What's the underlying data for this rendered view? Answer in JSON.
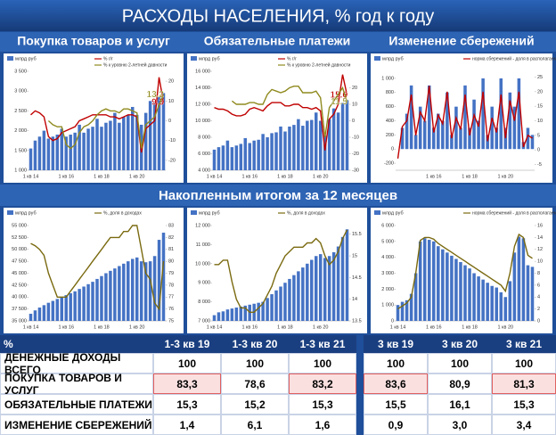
{
  "title": "РАСХОДЫ НАСЕЛЕНИЯ, % год к году",
  "section_title": "Накопленным итогом за 12 месяцев",
  "chart_data": [
    {
      "type": "combo",
      "title": "Покупка товаров и услуг",
      "end_labels": true,
      "categories": [
        "1 кв 14",
        null,
        null,
        null,
        null,
        null,
        null,
        null,
        "1 кв 16",
        null,
        null,
        null,
        null,
        null,
        null,
        null,
        "1 кв 18",
        null,
        null,
        null,
        null,
        null,
        null,
        null,
        "1 кв 20",
        null,
        null,
        null,
        null,
        null,
        null
      ],
      "ylim": [
        1000,
        3500
      ],
      "yticks": [
        {
          "value": 1000,
          "label": "1 000"
        },
        {
          "value": 1500,
          "label": "1 500"
        },
        {
          "value": 2000,
          "label": "2 000"
        },
        {
          "value": 2500,
          "label": "2 500"
        },
        {
          "value": 3000,
          "label": "3 000"
        },
        {
          "value": 3500,
          "label": "3 500"
        }
      ],
      "y2lim": [
        -25,
        25
      ],
      "y2ticks": [
        -20,
        -10,
        0,
        10,
        20
      ],
      "series": [
        {
          "name": "млрд руб",
          "kind": "bar",
          "color": "#4472c4",
          "values": [
            1550,
            1750,
            1850,
            2000,
            1800,
            1850,
            1900,
            2050,
            1850,
            1900,
            1950,
            2150,
            1950,
            2050,
            2100,
            2300,
            2100,
            2200,
            2250,
            2450,
            2200,
            2350,
            2400,
            2600,
            2400,
            2150,
            2450,
            2750,
            2700,
            2850,
            2950
          ]
        },
        {
          "name": "% г/г",
          "kind": "line",
          "axis": "y2",
          "color": "#c00000",
          "values": [
            3,
            5,
            4,
            2,
            -8,
            -10,
            -9,
            -6,
            -5,
            -4,
            -3,
            0,
            1,
            2,
            3,
            3,
            3,
            3,
            2,
            2,
            1,
            2,
            3,
            3,
            2,
            -16,
            -4,
            -2,
            0,
            22,
            9.3
          ]
        },
        {
          "name": "% к уровню 2-летней давности",
          "kind": "line",
          "axis": "y2",
          "color": "#8f8a1e",
          "values": [
            null,
            null,
            null,
            null,
            0,
            -2,
            -3,
            -3,
            -12,
            -14,
            -12,
            -6,
            -3,
            -2,
            0,
            3,
            5,
            6,
            5,
            5,
            4,
            6,
            6,
            5,
            4,
            -14,
            -2,
            0,
            2,
            8,
            13.2
          ]
        }
      ]
    },
    {
      "type": "combo",
      "title": "Обязательные платежи",
      "end_labels": true,
      "categories": [
        "1 кв 14",
        null,
        null,
        null,
        null,
        null,
        null,
        null,
        "1 кв 16",
        null,
        null,
        null,
        null,
        null,
        null,
        null,
        "1 кв 18",
        null,
        null,
        null,
        null,
        null,
        null,
        null,
        "1 кв 20",
        null,
        null,
        null,
        null,
        null,
        null
      ],
      "ylim": [
        4000,
        16000
      ],
      "yticks": [
        {
          "value": 4000,
          "label": "4 000"
        },
        {
          "value": 6000,
          "label": "6 000"
        },
        {
          "value": 8000,
          "label": "8 000"
        },
        {
          "value": 10000,
          "label": "10 000"
        },
        {
          "value": 12000,
          "label": "12 000"
        },
        {
          "value": 14000,
          "label": "14 000"
        },
        {
          "value": 16000,
          "label": "16 000"
        }
      ],
      "y2lim": [
        -30,
        30
      ],
      "y2ticks": [
        -30,
        -20,
        -10,
        0,
        10,
        20
      ],
      "series": [
        {
          "name": "млрд руб",
          "kind": "bar",
          "color": "#4472c4",
          "values": [
            6500,
            6800,
            7000,
            7600,
            6800,
            7000,
            7200,
            7900,
            7300,
            7600,
            7700,
            8400,
            8000,
            8500,
            8600,
            9300,
            8700,
            9300,
            9500,
            10200,
            9400,
            10000,
            10100,
            11000,
            10000,
            8200,
            10200,
            11500,
            11000,
            12200,
            12500
          ]
        },
        {
          "name": "% г/г",
          "kind": "line",
          "axis": "y2",
          "color": "#c00000",
          "values": [
            8,
            7,
            7,
            6,
            4,
            3,
            3,
            4,
            7,
            8,
            7,
            6,
            9,
            11,
            11,
            11,
            9,
            9,
            10,
            10,
            8,
            8,
            7,
            8,
            6,
            -18,
            1,
            4,
            10,
            28,
            15.6
          ]
        },
        {
          "name": "% к уровню 2-летней давности",
          "kind": "line",
          "axis": "y2",
          "color": "#8f8a1e",
          "values": [
            null,
            null,
            null,
            null,
            12,
            10,
            10,
            10,
            11,
            11,
            10,
            10,
            16,
            19,
            18,
            17,
            18,
            20,
            21,
            21,
            17,
            17,
            17,
            18,
            14,
            -10,
            8,
            12,
            16,
            20,
            11.5
          ]
        }
      ]
    },
    {
      "type": "combo",
      "title": "Изменение сбережений",
      "categories": [
        null,
        null,
        null,
        null,
        null,
        null,
        null,
        null,
        "1 кв 16",
        null,
        null,
        null,
        null,
        null,
        null,
        null,
        "1 кв 18",
        null,
        null,
        null,
        null,
        null,
        null,
        null,
        "1 кв 20",
        null,
        null,
        null,
        null,
        null,
        null
      ],
      "ylim": [
        -300,
        1100
      ],
      "yticks": [
        -200,
        0,
        200,
        400,
        600,
        800,
        {
          "value": 1000,
          "label": "1 000"
        }
      ],
      "y2lim": [
        -7,
        27
      ],
      "y2ticks": [
        -5,
        0,
        5,
        10,
        15,
        20,
        25
      ],
      "series": [
        {
          "name": "млрд руб",
          "kind": "bar",
          "color": "#4472c4",
          "values": [
            0,
            300,
            500,
            900,
            200,
            600,
            400,
            900,
            300,
            500,
            400,
            800,
            200,
            600,
            300,
            900,
            300,
            700,
            400,
            1000,
            200,
            600,
            300,
            1000,
            300,
            800,
            600,
            1000,
            100,
            300,
            200
          ]
        },
        {
          "name": "норма сбережений - доля в располагаемых доходах, %",
          "kind": "line",
          "axis": "y2",
          "color": "#c00000",
          "values": [
            -3,
            8,
            10,
            19,
            5,
            13,
            10,
            22,
            6,
            12,
            9,
            20,
            4,
            11,
            7,
            19,
            5,
            12,
            8,
            20,
            3,
            11,
            6,
            19,
            4,
            17,
            10,
            20,
            1,
            5,
            4
          ]
        }
      ]
    },
    {
      "type": "combo",
      "categories": [
        "1 кв 14",
        null,
        null,
        null,
        null,
        null,
        null,
        null,
        "1 кв 16",
        null,
        null,
        null,
        null,
        null,
        null,
        null,
        "1 кв 18",
        null,
        null,
        null,
        null,
        null,
        null,
        null,
        "1 кв 20",
        null,
        null,
        null,
        null,
        null,
        null
      ],
      "ylim": [
        35000,
        55000
      ],
      "yticks": [
        {
          "value": 35000,
          "label": "35 000"
        },
        {
          "value": 37500,
          "label": "37 500"
        },
        {
          "value": 40000,
          "label": "40 000"
        },
        {
          "value": 42500,
          "label": "42 500"
        },
        {
          "value": 45000,
          "label": "45 000"
        },
        {
          "value": 47500,
          "label": "47 500"
        },
        {
          "value": 50000,
          "label": "50 000"
        },
        {
          "value": 52500,
          "label": "52 500"
        },
        {
          "value": 55000,
          "label": "55 000"
        }
      ],
      "y2lim": [
        75,
        83
      ],
      "y2ticks": [
        75,
        76,
        77,
        78,
        79,
        80,
        81,
        82,
        83
      ],
      "series": [
        {
          "name": "млрд руб",
          "kind": "bar",
          "color": "#4472c4",
          "values": [
            36500,
            37200,
            37800,
            38300,
            38800,
            39200,
            39600,
            40000,
            40400,
            40800,
            41200,
            41700,
            42200,
            42700,
            43200,
            43800,
            44400,
            45000,
            45500,
            46000,
            46500,
            47000,
            47500,
            48000,
            48300,
            47500,
            47300,
            47500,
            48600,
            52000,
            53500
          ]
        },
        {
          "name": "%, доля в доходах",
          "kind": "line",
          "axis": "y2",
          "color": "#7a6a10",
          "values": [
            81.5,
            81.3,
            81,
            80.5,
            79,
            78,
            77,
            77,
            77,
            77.5,
            78,
            78.5,
            79,
            79.5,
            80,
            80.5,
            81,
            81.5,
            82,
            82,
            82,
            82.5,
            82.5,
            83,
            83,
            81,
            79,
            78.5,
            76.5,
            76,
            80
          ]
        }
      ]
    },
    {
      "type": "combo",
      "categories": [
        "1 кв 14",
        null,
        null,
        null,
        null,
        null,
        null,
        null,
        "1 кв 16",
        null,
        null,
        null,
        null,
        null,
        null,
        null,
        "1 кв 18",
        null,
        null,
        null,
        null,
        null,
        null,
        null,
        "1 кв 20",
        null,
        null,
        null,
        null,
        null,
        null
      ],
      "ylim": [
        7000,
        12000
      ],
      "yticks": [
        {
          "value": 7000,
          "label": "7 000"
        },
        {
          "value": 8000,
          "label": "8 000"
        },
        {
          "value": 9000,
          "label": "9 000"
        },
        {
          "value": 10000,
          "label": "10 000"
        },
        {
          "value": 11000,
          "label": "11 000"
        },
        {
          "value": 12000,
          "label": "12 000"
        }
      ],
      "y2lim": [
        13.5,
        15.7
      ],
      "y2ticks": [
        13.5,
        14,
        14.5,
        15,
        15.5
      ],
      "series": [
        {
          "name": "млрд руб",
          "kind": "bar",
          "color": "#4472c4",
          "values": [
            7300,
            7450,
            7500,
            7600,
            7650,
            7700,
            7750,
            7800,
            7850,
            7900,
            7950,
            8000,
            8200,
            8400,
            8600,
            8800,
            9000,
            9200,
            9400,
            9600,
            9800,
            10000,
            10200,
            10400,
            10500,
            10300,
            10400,
            10600,
            10900,
            11400,
            11800
          ]
        },
        {
          "name": "%, доля в доходах",
          "kind": "line",
          "axis": "y2",
          "color": "#7a6a10",
          "values": [
            14.8,
            14.8,
            14.9,
            14.9,
            14.4,
            14,
            13.8,
            13.8,
            13.7,
            13.7,
            13.8,
            13.9,
            14.1,
            14.3,
            14.6,
            14.8,
            15,
            15.1,
            15.2,
            15.2,
            15.2,
            15.3,
            15.3,
            15.4,
            15.3,
            15,
            14.8,
            14.9,
            15.1,
            15.4,
            15.6
          ]
        }
      ]
    },
    {
      "type": "combo",
      "categories": [
        "1 кв 14",
        null,
        null,
        null,
        null,
        null,
        null,
        null,
        "1 кв 16",
        null,
        null,
        null,
        null,
        null,
        null,
        null,
        "1 кв 18",
        null,
        null,
        null,
        null,
        null,
        null,
        null,
        "1 кв 20",
        null,
        null,
        null,
        null,
        null,
        null
      ],
      "ylim": [
        0,
        6000
      ],
      "yticks": [
        0,
        {
          "value": 1000,
          "label": "1 000"
        },
        {
          "value": 2000,
          "label": "2 000"
        },
        {
          "value": 3000,
          "label": "3 000"
        },
        {
          "value": 4000,
          "label": "4 000"
        },
        {
          "value": 5000,
          "label": "5 000"
        },
        {
          "value": 6000,
          "label": "6 000"
        }
      ],
      "y2lim": [
        0,
        16
      ],
      "y2ticks": [
        0,
        2,
        4,
        6,
        8,
        10,
        12,
        14,
        16
      ],
      "series": [
        {
          "name": "млрд руб",
          "kind": "bar",
          "color": "#4472c4",
          "values": [
            1000,
            1200,
            1300,
            1700,
            3000,
            5000,
            5200,
            5100,
            5000,
            4700,
            4500,
            4300,
            4100,
            3900,
            3700,
            3500,
            3300,
            3000,
            2800,
            2600,
            2400,
            2200,
            2100,
            1800,
            1500,
            2500,
            4300,
            5300,
            5200,
            3500,
            3400
          ]
        },
        {
          "name": "норма сбережений - доля в располагаемых доходах, %",
          "kind": "line",
          "axis": "y2",
          "color": "#7a6a10",
          "values": [
            2,
            2.5,
            3,
            4,
            8,
            13.5,
            14,
            14,
            13.7,
            13,
            12.5,
            12,
            11.5,
            11,
            10.5,
            10,
            9.5,
            9,
            8.5,
            8,
            7.5,
            7,
            6.5,
            6,
            5,
            8,
            12.5,
            14.5,
            14,
            11,
            10.5
          ]
        }
      ]
    }
  ],
  "table": {
    "header": [
      "%",
      "1-3 кв 19",
      "1-3 кв 20",
      "1-3 кв 21",
      "3 кв 19",
      "3 кв 20",
      "3 кв 21"
    ],
    "rows": [
      [
        "ДЕНЕЖНЫЕ ДОХОДЫ ВСЕГО",
        "100",
        "100",
        "100",
        "100",
        "100",
        "100"
      ],
      [
        "ПОКУПКА ТОВАРОВ И УСЛУГ",
        "83,3",
        "78,6",
        "83,2",
        "83,6",
        "80,9",
        "81,3"
      ],
      [
        "ОБЯЗАТЕЛЬНЫЕ ПЛАТЕЖИ",
        "15,3",
        "15,2",
        "15,3",
        "15,5",
        "16,1",
        "15,3"
      ],
      [
        "ИЗМЕНЕНИЕ СБЕРЕЖЕНИЙ",
        "1,4",
        "6,1",
        "1,6",
        "0,9",
        "3,0",
        "3,4"
      ]
    ],
    "highlighted_cells": [
      [
        1,
        1
      ],
      [
        1,
        3
      ],
      [
        1,
        4
      ],
      [
        1,
        6
      ]
    ]
  }
}
